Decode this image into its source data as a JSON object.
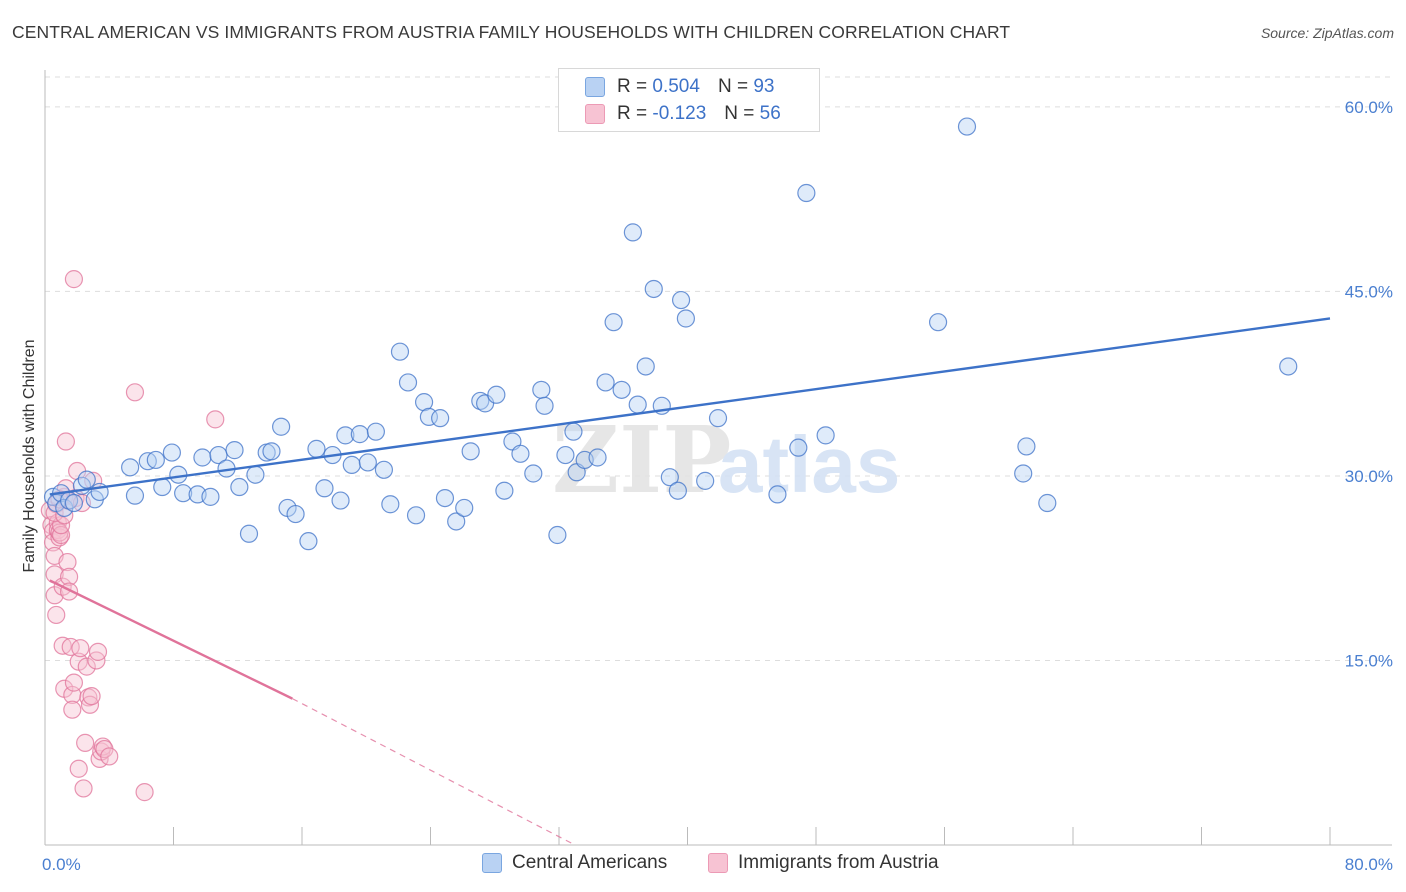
{
  "title": "CENTRAL AMERICAN VS IMMIGRANTS FROM AUSTRIA FAMILY HOUSEHOLDS WITH CHILDREN CORRELATION CHART",
  "source": "Source: ZipAtlas.com",
  "watermark": {
    "zip": "ZIP",
    "atlas": "atlas"
  },
  "colors": {
    "blue": "#3d72c8",
    "blue_fill": "#b9d2f3",
    "pink": "#e0739a",
    "pink_fill": "#f7c3d3",
    "axis_text": "#4a7fd0",
    "grid": "#dddddd"
  },
  "legend": {
    "rows": [
      {
        "r_label": "R =",
        "r_value": "0.504",
        "n_label": "N =",
        "n_value": "93"
      },
      {
        "r_label": "R =",
        "r_value": "-0.123",
        "n_label": "N =",
        "n_value": "56"
      }
    ]
  },
  "bottom_legend": {
    "series1": "Central Americans",
    "series2": "Immigrants from Austria"
  },
  "chart_data": {
    "type": "scatter",
    "title": "CENTRAL AMERICAN VS IMMIGRANTS FROM AUSTRIA FAMILY HOUSEHOLDS WITH CHILDREN CORRELATION CHART",
    "xlabel": "",
    "ylabel": "Family Households with Children",
    "xlim": [
      0,
      80
    ],
    "ylim": [
      0,
      63
    ],
    "x_tick_labels": [
      "0.0%",
      "80.0%"
    ],
    "x_ticks": [
      0,
      8,
      16,
      24,
      32,
      40,
      48,
      56,
      64,
      72,
      80
    ],
    "y_ticks": [
      15,
      30,
      45,
      60
    ],
    "y_tick_labels": [
      "15.0%",
      "30.0%",
      "45.0%",
      "60.0%"
    ],
    "grid": "horizontal dashed",
    "legend_position": "top-center",
    "series": [
      {
        "name": "Central Americans",
        "color": "#3d72c8",
        "r": 0.504,
        "n": 93,
        "trend": {
          "x": [
            0.3,
            80
          ],
          "y": [
            28.5,
            42.8
          ]
        },
        "points": [
          [
            0.5,
            28.3
          ],
          [
            0.7,
            27.8
          ],
          [
            1.0,
            28.6
          ],
          [
            1.2,
            27.4
          ],
          [
            1.5,
            28.0
          ],
          [
            1.8,
            27.8
          ],
          [
            2.3,
            29.2
          ],
          [
            2.6,
            29.7
          ],
          [
            3.1,
            28.1
          ],
          [
            3.4,
            28.7
          ],
          [
            5.3,
            30.7
          ],
          [
            5.6,
            28.4
          ],
          [
            6.4,
            31.2
          ],
          [
            6.9,
            31.3
          ],
          [
            7.3,
            29.1
          ],
          [
            7.9,
            31.9
          ],
          [
            8.3,
            30.1
          ],
          [
            8.6,
            28.6
          ],
          [
            9.5,
            28.5
          ],
          [
            9.8,
            31.5
          ],
          [
            10.3,
            28.3
          ],
          [
            10.8,
            31.7
          ],
          [
            11.3,
            30.6
          ],
          [
            11.8,
            32.1
          ],
          [
            12.1,
            29.1
          ],
          [
            12.7,
            25.3
          ],
          [
            13.1,
            30.1
          ],
          [
            13.8,
            31.9
          ],
          [
            14.1,
            32.0
          ],
          [
            14.7,
            34.0
          ],
          [
            15.1,
            27.4
          ],
          [
            15.6,
            26.9
          ],
          [
            16.4,
            24.7
          ],
          [
            16.9,
            32.2
          ],
          [
            17.4,
            29.0
          ],
          [
            17.9,
            31.7
          ],
          [
            18.4,
            28.0
          ],
          [
            18.7,
            33.3
          ],
          [
            19.1,
            30.9
          ],
          [
            19.6,
            33.4
          ],
          [
            20.1,
            31.1
          ],
          [
            20.6,
            33.6
          ],
          [
            21.1,
            30.5
          ],
          [
            21.5,
            27.7
          ],
          [
            22.1,
            40.1
          ],
          [
            22.6,
            37.6
          ],
          [
            23.1,
            26.8
          ],
          [
            23.6,
            36.0
          ],
          [
            23.9,
            34.8
          ],
          [
            24.6,
            34.7
          ],
          [
            24.9,
            28.2
          ],
          [
            25.6,
            26.3
          ],
          [
            26.1,
            27.4
          ],
          [
            26.5,
            32.0
          ],
          [
            27.1,
            36.1
          ],
          [
            27.4,
            35.9
          ],
          [
            28.1,
            36.6
          ],
          [
            28.6,
            28.8
          ],
          [
            29.1,
            32.8
          ],
          [
            29.6,
            31.8
          ],
          [
            30.4,
            30.2
          ],
          [
            30.9,
            37.0
          ],
          [
            31.1,
            35.7
          ],
          [
            31.9,
            25.2
          ],
          [
            32.4,
            31.7
          ],
          [
            32.9,
            33.6
          ],
          [
            33.1,
            30.3
          ],
          [
            33.6,
            31.3
          ],
          [
            34.4,
            31.5
          ],
          [
            34.9,
            37.6
          ],
          [
            35.4,
            42.5
          ],
          [
            35.9,
            37.0
          ],
          [
            36.6,
            49.8
          ],
          [
            36.9,
            35.8
          ],
          [
            37.4,
            38.9
          ],
          [
            37.9,
            45.2
          ],
          [
            38.4,
            35.7
          ],
          [
            38.9,
            29.9
          ],
          [
            39.4,
            28.8
          ],
          [
            39.6,
            44.3
          ],
          [
            39.9,
            42.8
          ],
          [
            41.1,
            29.6
          ],
          [
            41.9,
            34.7
          ],
          [
            45.6,
            28.5
          ],
          [
            46.9,
            32.3
          ],
          [
            47.4,
            53.0
          ],
          [
            48.6,
            33.3
          ],
          [
            55.6,
            42.5
          ],
          [
            57.4,
            58.4
          ],
          [
            60.9,
            30.2
          ],
          [
            61.1,
            32.4
          ],
          [
            62.4,
            27.8
          ],
          [
            77.4,
            38.9
          ]
        ]
      },
      {
        "name": "Immigrants from Austria",
        "color": "#e0739a",
        "r": -0.123,
        "n": 56,
        "trend": {
          "x": [
            0.3,
            15.4
          ],
          "y": [
            21.5,
            11.9
          ]
        },
        "trend_extended": {
          "x": [
            15.4,
            33.0
          ],
          "y": [
            11.9,
            0.0
          ]
        },
        "points": [
          [
            0.3,
            27.2
          ],
          [
            0.4,
            26.0
          ],
          [
            0.5,
            25.5
          ],
          [
            0.5,
            24.6
          ],
          [
            0.6,
            23.5
          ],
          [
            0.6,
            22.0
          ],
          [
            0.6,
            20.3
          ],
          [
            0.7,
            18.7
          ],
          [
            0.7,
            27.7
          ],
          [
            0.8,
            26.2
          ],
          [
            0.8,
            25.6
          ],
          [
            0.9,
            25.0
          ],
          [
            0.9,
            25.4
          ],
          [
            1.0,
            25.2
          ],
          [
            1.0,
            26.0
          ],
          [
            1.1,
            21.0
          ],
          [
            1.1,
            16.2
          ],
          [
            1.2,
            12.7
          ],
          [
            1.2,
            28.3
          ],
          [
            1.3,
            29.0
          ],
          [
            1.3,
            32.8
          ],
          [
            1.4,
            28.0
          ],
          [
            1.4,
            23.0
          ],
          [
            1.5,
            21.8
          ],
          [
            1.5,
            20.6
          ],
          [
            1.6,
            16.1
          ],
          [
            1.7,
            12.2
          ],
          [
            1.7,
            11.0
          ],
          [
            1.8,
            13.2
          ],
          [
            1.8,
            46.0
          ],
          [
            1.9,
            28.2
          ],
          [
            2.0,
            30.4
          ],
          [
            2.1,
            14.9
          ],
          [
            2.1,
            6.2
          ],
          [
            2.2,
            16.0
          ],
          [
            2.3,
            27.8
          ],
          [
            2.4,
            4.6
          ],
          [
            2.5,
            8.3
          ],
          [
            2.6,
            14.5
          ],
          [
            2.7,
            12.0
          ],
          [
            2.8,
            11.4
          ],
          [
            2.9,
            12.1
          ],
          [
            3.0,
            29.6
          ],
          [
            3.2,
            15.0
          ],
          [
            3.3,
            15.7
          ],
          [
            3.4,
            7.0
          ],
          [
            3.5,
            7.6
          ],
          [
            3.6,
            8.0
          ],
          [
            3.7,
            7.8
          ],
          [
            4.0,
            7.2
          ],
          [
            5.6,
            36.8
          ],
          [
            6.2,
            4.3
          ],
          [
            10.6,
            34.6
          ],
          [
            0.6,
            27.0
          ],
          [
            0.9,
            28.1
          ],
          [
            1.2,
            26.8
          ]
        ]
      }
    ]
  }
}
